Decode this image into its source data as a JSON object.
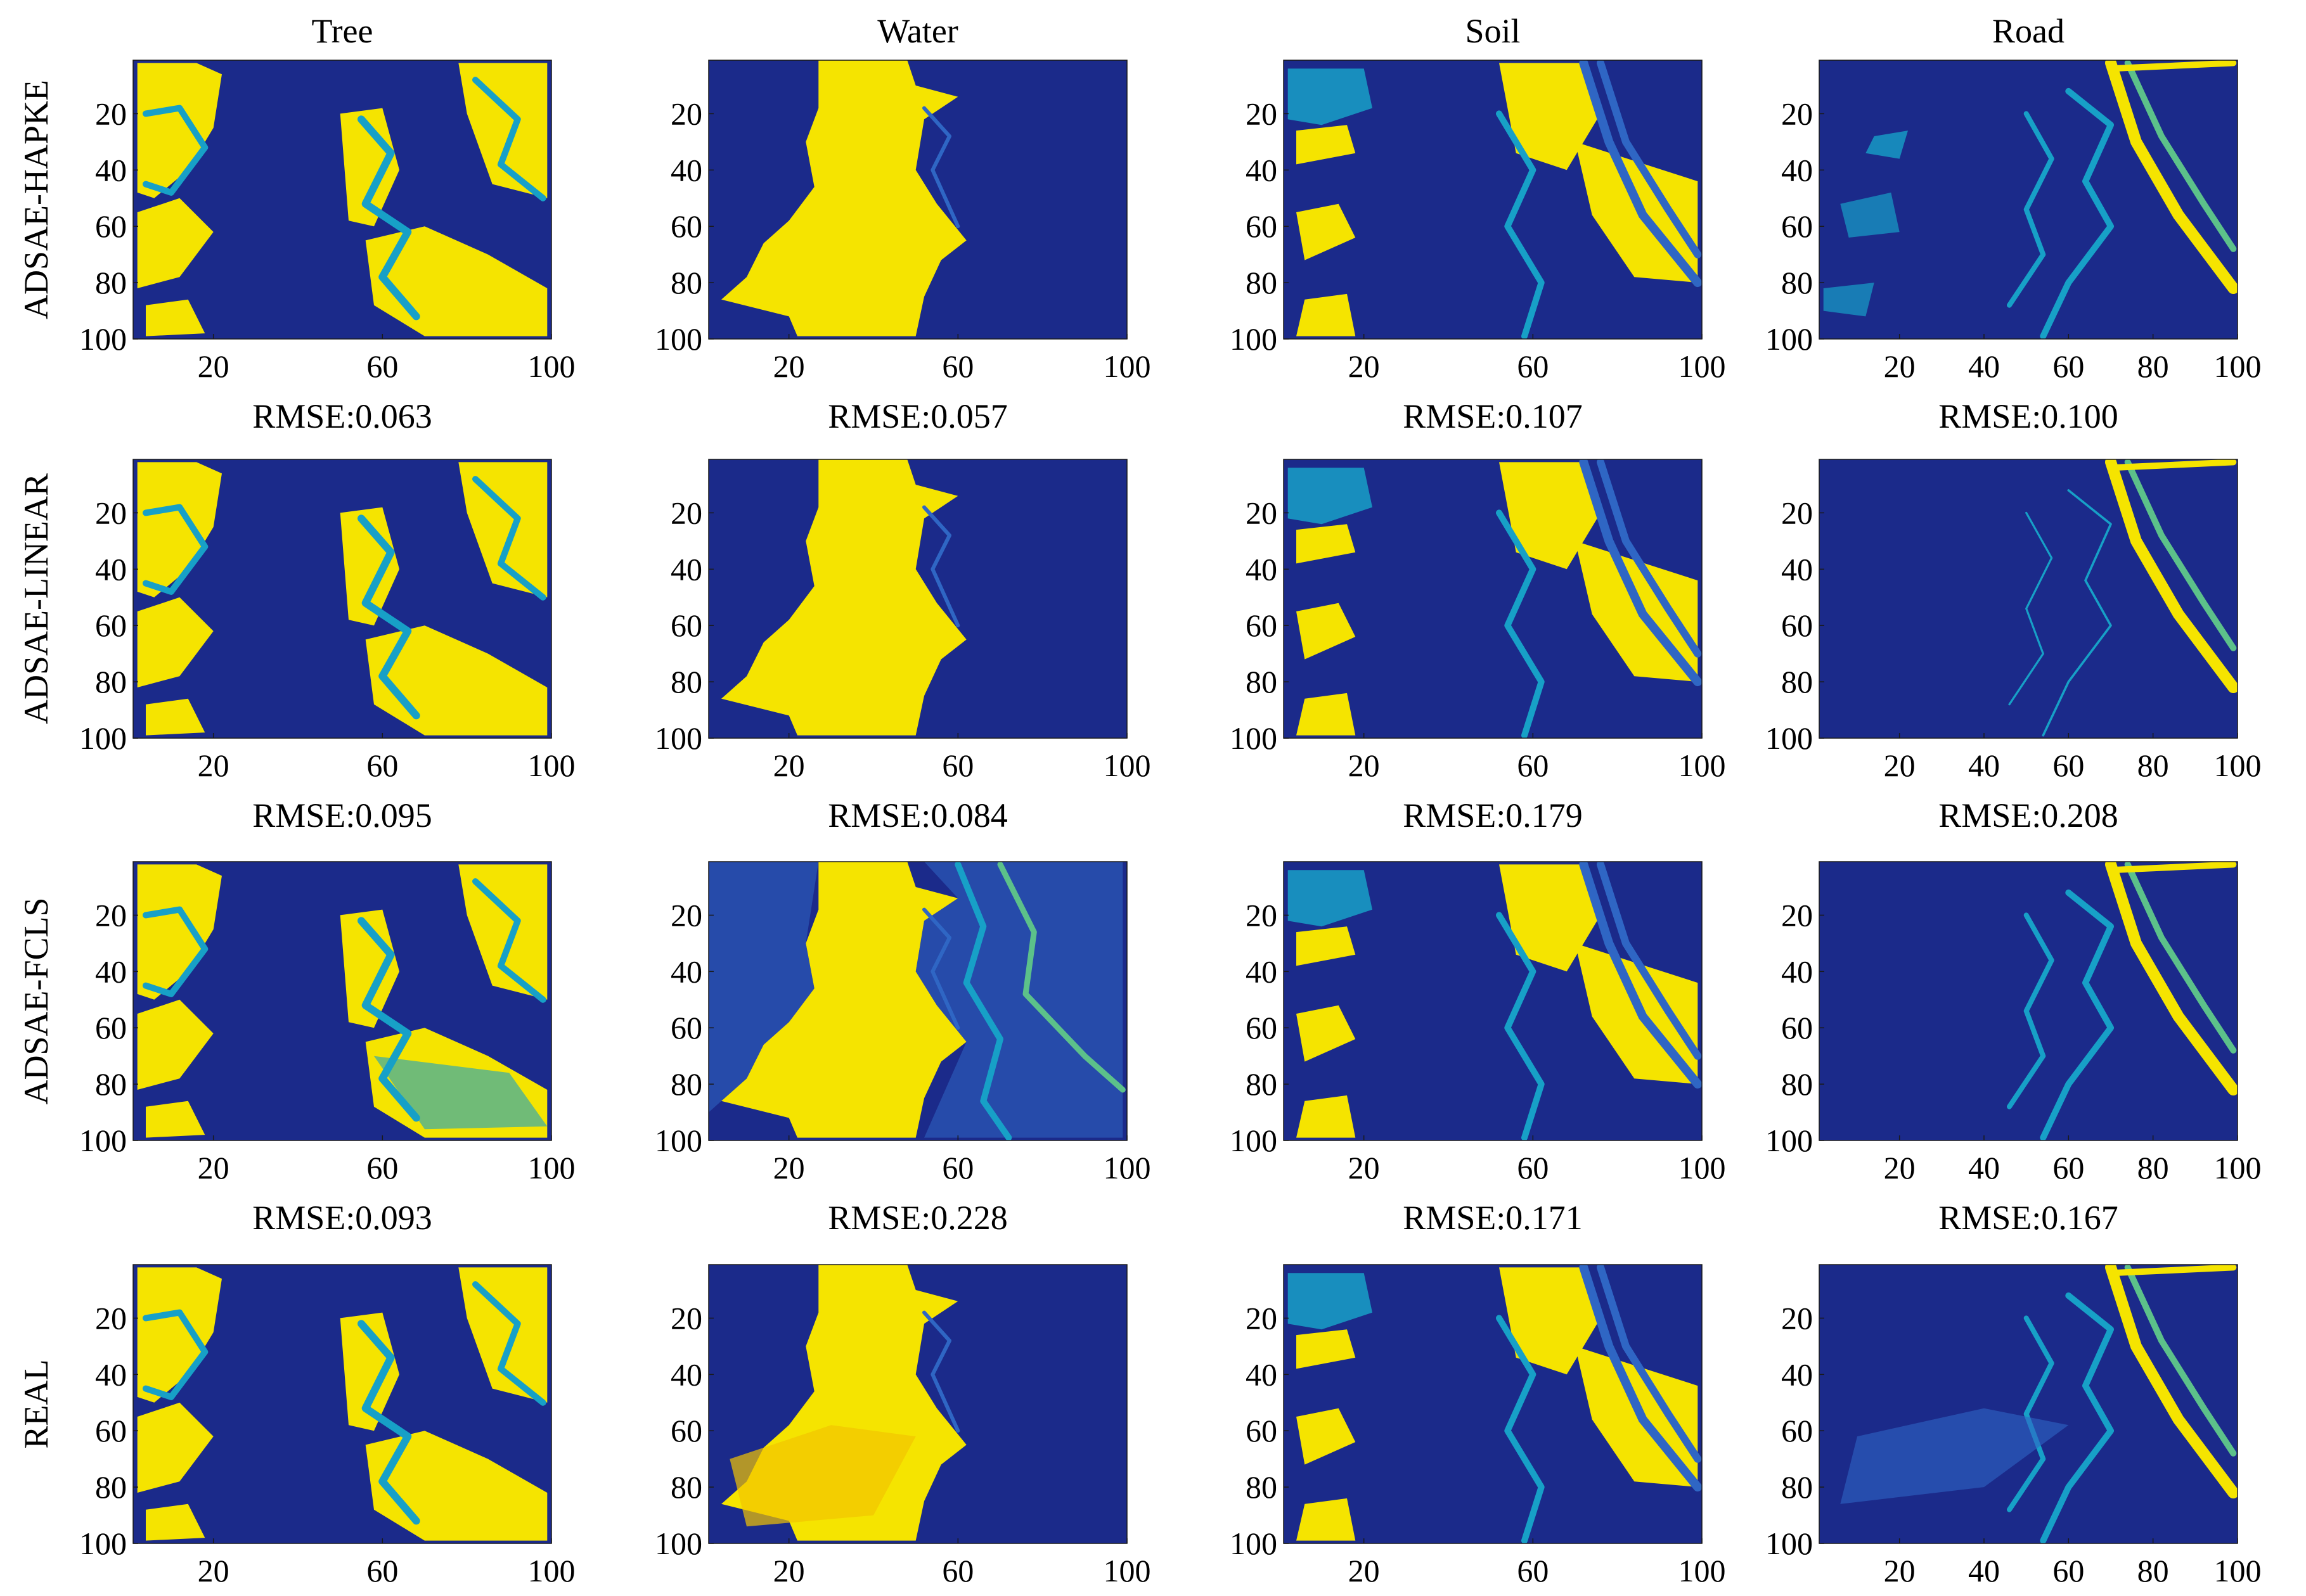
{
  "colors": {
    "low": "#1b2a8a",
    "mid_low": "#2f66c4",
    "mid": "#17a0c7",
    "mid_high": "#5cc18a",
    "high": "#f5e400"
  },
  "columns": [
    "Tree",
    "Water",
    "Soil",
    "Road"
  ],
  "rows": [
    "ADSAE-HAPKE",
    "ADSAE-LINEAR",
    "ADSAE-FCLS",
    "REAL"
  ],
  "chart_data": [
    {
      "type": "heatmap",
      "row": "ADSAE-HAPKE",
      "column": "Tree",
      "title": "Tree",
      "rmse_label": "RMSE:0.063",
      "rmse": 0.063,
      "xticks": [
        20,
        60,
        100
      ],
      "yticks": [
        20,
        40,
        60,
        80,
        100
      ],
      "xlim": [
        1,
        100
      ],
      "ylim": [
        1,
        100
      ]
    },
    {
      "type": "heatmap",
      "row": "ADSAE-HAPKE",
      "column": "Water",
      "title": "Water",
      "rmse_label": "RMSE:0.057",
      "rmse": 0.057,
      "xticks": [
        20,
        60,
        100
      ],
      "yticks": [
        20,
        40,
        60,
        80,
        100
      ],
      "xlim": [
        1,
        100
      ],
      "ylim": [
        1,
        100
      ]
    },
    {
      "type": "heatmap",
      "row": "ADSAE-HAPKE",
      "column": "Soil",
      "title": "Soil",
      "rmse_label": "RMSE:0.107",
      "rmse": 0.107,
      "xticks": [
        20,
        60,
        100
      ],
      "yticks": [
        20,
        40,
        60,
        80,
        100
      ],
      "xlim": [
        1,
        100
      ],
      "ylim": [
        1,
        100
      ]
    },
    {
      "type": "heatmap",
      "row": "ADSAE-HAPKE",
      "column": "Road",
      "title": "Road",
      "rmse_label": "RMSE:0.100",
      "rmse": 0.1,
      "xticks": [
        20,
        40,
        60,
        80,
        100
      ],
      "yticks": [
        20,
        40,
        60,
        80,
        100
      ],
      "xlim": [
        1,
        100
      ],
      "ylim": [
        1,
        100
      ]
    },
    {
      "type": "heatmap",
      "row": "ADSAE-LINEAR",
      "column": "Tree",
      "title": "",
      "rmse_label": "RMSE:0.095",
      "rmse": 0.095,
      "xticks": [
        20,
        60,
        100
      ],
      "yticks": [
        20,
        40,
        60,
        80,
        100
      ],
      "xlim": [
        1,
        100
      ],
      "ylim": [
        1,
        100
      ]
    },
    {
      "type": "heatmap",
      "row": "ADSAE-LINEAR",
      "column": "Water",
      "title": "",
      "rmse_label": "RMSE:0.084",
      "rmse": 0.084,
      "xticks": [
        20,
        60,
        100
      ],
      "yticks": [
        20,
        40,
        60,
        80,
        100
      ],
      "xlim": [
        1,
        100
      ],
      "ylim": [
        1,
        100
      ]
    },
    {
      "type": "heatmap",
      "row": "ADSAE-LINEAR",
      "column": "Soil",
      "title": "",
      "rmse_label": "RMSE:0.179",
      "rmse": 0.179,
      "xticks": [
        20,
        60,
        100
      ],
      "yticks": [
        20,
        40,
        60,
        80,
        100
      ],
      "xlim": [
        1,
        100
      ],
      "ylim": [
        1,
        100
      ]
    },
    {
      "type": "heatmap",
      "row": "ADSAE-LINEAR",
      "column": "Road",
      "title": "",
      "rmse_label": "RMSE:0.208",
      "rmse": 0.208,
      "xticks": [
        20,
        40,
        60,
        80,
        100
      ],
      "yticks": [
        20,
        40,
        60,
        80,
        100
      ],
      "xlim": [
        1,
        100
      ],
      "ylim": [
        1,
        100
      ]
    },
    {
      "type": "heatmap",
      "row": "ADSAE-FCLS",
      "column": "Tree",
      "title": "",
      "rmse_label": "RMSE:0.093",
      "rmse": 0.093,
      "xticks": [
        20,
        60,
        100
      ],
      "yticks": [
        20,
        40,
        60,
        80,
        100
      ],
      "xlim": [
        1,
        100
      ],
      "ylim": [
        1,
        100
      ]
    },
    {
      "type": "heatmap",
      "row": "ADSAE-FCLS",
      "column": "Water",
      "title": "",
      "rmse_label": "RMSE:0.228",
      "rmse": 0.228,
      "xticks": [
        20,
        60,
        100
      ],
      "yticks": [
        20,
        40,
        60,
        80,
        100
      ],
      "xlim": [
        1,
        100
      ],
      "ylim": [
        1,
        100
      ]
    },
    {
      "type": "heatmap",
      "row": "ADSAE-FCLS",
      "column": "Soil",
      "title": "",
      "rmse_label": "RMSE:0.171",
      "rmse": 0.171,
      "xticks": [
        20,
        60,
        100
      ],
      "yticks": [
        20,
        40,
        60,
        80,
        100
      ],
      "xlim": [
        1,
        100
      ],
      "ylim": [
        1,
        100
      ]
    },
    {
      "type": "heatmap",
      "row": "ADSAE-FCLS",
      "column": "Road",
      "title": "",
      "rmse_label": "RMSE:0.167",
      "rmse": 0.167,
      "xticks": [
        20,
        40,
        60,
        80,
        100
      ],
      "yticks": [
        20,
        40,
        60,
        80,
        100
      ],
      "xlim": [
        1,
        100
      ],
      "ylim": [
        1,
        100
      ]
    },
    {
      "type": "heatmap",
      "row": "REAL",
      "column": "Tree",
      "title": "",
      "rmse_label": "",
      "xticks": [
        20,
        60,
        100
      ],
      "yticks": [
        20,
        40,
        60,
        80,
        100
      ],
      "xlim": [
        1,
        100
      ],
      "ylim": [
        1,
        100
      ]
    },
    {
      "type": "heatmap",
      "row": "REAL",
      "column": "Water",
      "title": "",
      "rmse_label": "",
      "xticks": [
        20,
        60,
        100
      ],
      "yticks": [
        20,
        40,
        60,
        80,
        100
      ],
      "xlim": [
        1,
        100
      ],
      "ylim": [
        1,
        100
      ]
    },
    {
      "type": "heatmap",
      "row": "REAL",
      "column": "Soil",
      "title": "",
      "rmse_label": "",
      "xticks": [
        20,
        60,
        100
      ],
      "yticks": [
        20,
        40,
        60,
        80,
        100
      ],
      "xlim": [
        1,
        100
      ],
      "ylim": [
        1,
        100
      ]
    },
    {
      "type": "heatmap",
      "row": "REAL",
      "column": "Road",
      "title": "",
      "rmse_label": "",
      "xticks": [
        20,
        40,
        60,
        80,
        100
      ],
      "yticks": [
        20,
        40,
        60,
        80,
        100
      ],
      "xlim": [
        1,
        100
      ],
      "ylim": [
        1,
        100
      ]
    }
  ]
}
